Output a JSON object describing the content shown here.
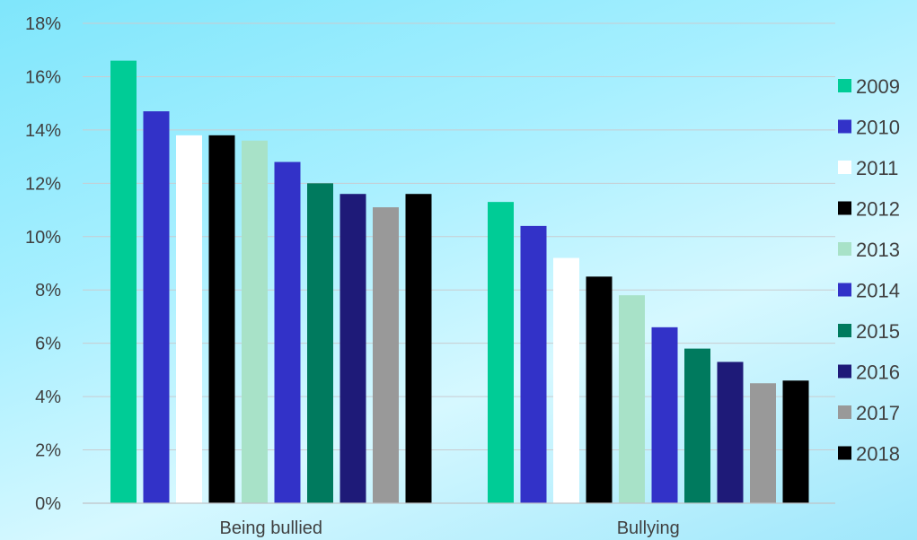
{
  "chart_data": {
    "type": "bar",
    "categories": [
      "Being bullied",
      "Bullying"
    ],
    "series": [
      {
        "name": "2009",
        "color": "#00cc96",
        "values": [
          16.6,
          11.3
        ]
      },
      {
        "name": "2010",
        "color": "#3232c8",
        "values": [
          14.7,
          10.4
        ]
      },
      {
        "name": "2011",
        "color": "#ffffff",
        "values": [
          13.8,
          9.2
        ]
      },
      {
        "name": "2012",
        "color": "#000000",
        "values": [
          13.8,
          8.5
        ]
      },
      {
        "name": "2013",
        "color": "#a8e2c8",
        "values": [
          13.6,
          7.8
        ]
      },
      {
        "name": "2014",
        "color": "#3232c8",
        "values": [
          12.8,
          6.6
        ]
      },
      {
        "name": "2015",
        "color": "#007a5e",
        "values": [
          12.0,
          5.8
        ]
      },
      {
        "name": "2016",
        "color": "#1e1a78",
        "values": [
          11.6,
          5.3
        ]
      },
      {
        "name": "2017",
        "color": "#999999",
        "values": [
          11.1,
          4.5
        ]
      },
      {
        "name": "2018",
        "color": "#000000",
        "values": [
          11.6,
          4.6
        ]
      }
    ],
    "y_ticks": [
      "0%",
      "2%",
      "4%",
      "6%",
      "8%",
      "10%",
      "12%",
      "14%",
      "16%",
      "18%"
    ],
    "ylim": [
      0,
      18
    ],
    "grid": true,
    "legend_position": "right"
  }
}
